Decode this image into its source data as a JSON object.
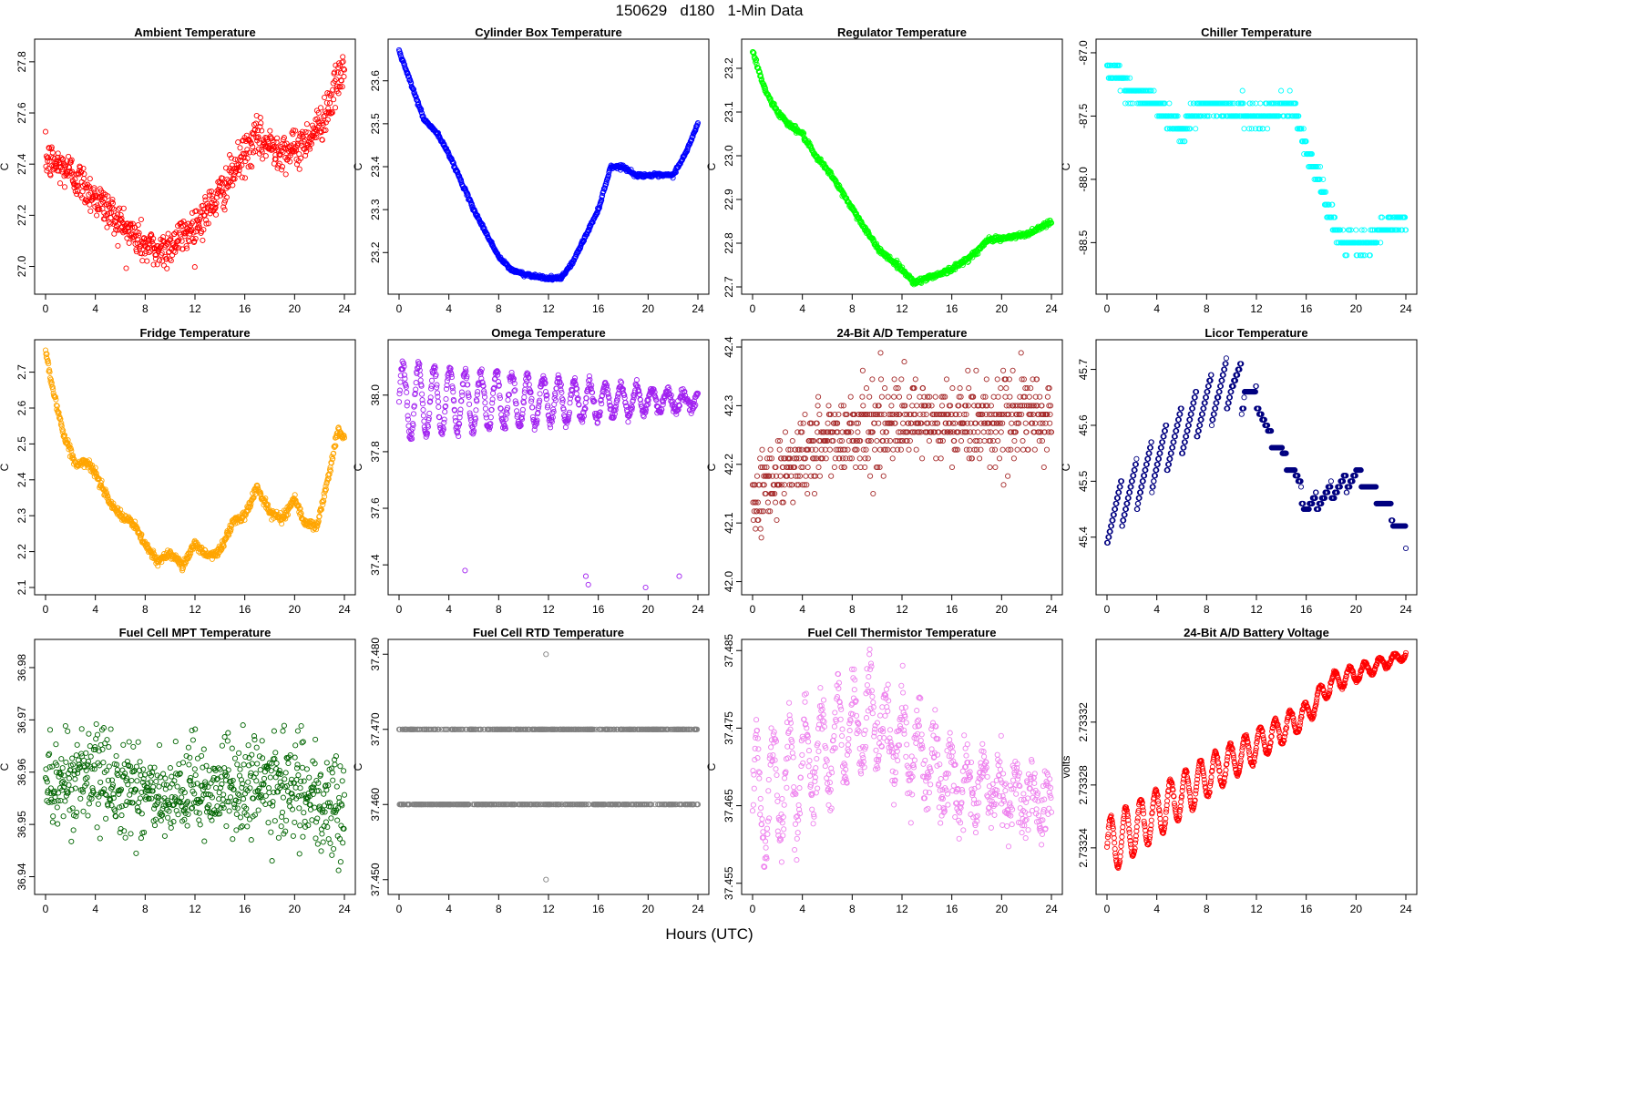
{
  "overall_title": "150629   d180   1-Min Data",
  "overall_xlabel": "Hours (UTC)",
  "chart_data": [
    {
      "type": "scatter",
      "title": "Ambient Temperature",
      "ylabel": "C",
      "color": "#ff0000",
      "xlim": [
        0,
        24
      ],
      "ylim": [
        26.92,
        27.86
      ],
      "xticks": [
        "0",
        "4",
        "8",
        "12",
        "16",
        "20",
        "24"
      ],
      "yticks": [
        "27.0",
        "27.2",
        "27.4",
        "27.6",
        "27.8"
      ],
      "style": "noisy",
      "trend": [
        [
          0,
          27.42
        ],
        [
          2,
          27.37
        ],
        [
          4,
          27.27
        ],
        [
          6,
          27.17
        ],
        [
          8,
          27.08
        ],
        [
          9,
          27.06
        ],
        [
          10,
          27.08
        ],
        [
          12,
          27.16
        ],
        [
          14,
          27.28
        ],
        [
          16,
          27.44
        ],
        [
          17,
          27.5
        ],
        [
          18,
          27.47
        ],
        [
          20,
          27.45
        ],
        [
          22,
          27.55
        ],
        [
          23,
          27.66
        ],
        [
          24,
          27.78
        ]
      ],
      "noise": 0.07
    },
    {
      "type": "scatter",
      "title": "Cylinder Box Temperature",
      "ylabel": "C",
      "color": "#0000ff",
      "xlim": [
        0,
        24
      ],
      "ylim": [
        23.12,
        23.68
      ],
      "xticks": [
        "0",
        "4",
        "8",
        "12",
        "16",
        "20",
        "24"
      ],
      "yticks": [
        "23.2",
        "23.3",
        "23.4",
        "23.5",
        "23.6"
      ],
      "style": "smooth",
      "trend": [
        [
          0,
          23.67
        ],
        [
          1,
          23.59
        ],
        [
          2,
          23.51
        ],
        [
          3,
          23.48
        ],
        [
          4,
          23.43
        ],
        [
          6,
          23.3
        ],
        [
          8,
          23.19
        ],
        [
          9,
          23.16
        ],
        [
          10,
          23.15
        ],
        [
          12,
          23.14
        ],
        [
          13,
          23.14
        ],
        [
          14,
          23.18
        ],
        [
          16,
          23.3
        ],
        [
          17,
          23.4
        ],
        [
          18,
          23.4
        ],
        [
          19,
          23.38
        ],
        [
          22,
          23.38
        ],
        [
          23,
          23.43
        ],
        [
          24,
          23.5
        ]
      ],
      "noise": 0.002
    },
    {
      "type": "scatter",
      "title": "Regulator Temperature",
      "ylabel": "C",
      "color": "#00ff00",
      "xlim": [
        0,
        24
      ],
      "ylim": [
        22.7,
        23.25
      ],
      "xticks": [
        "0",
        "4",
        "8",
        "12",
        "16",
        "20",
        "24"
      ],
      "yticks": [
        "22.7",
        "22.8",
        "22.9",
        "23.0",
        "23.1",
        "23.2"
      ],
      "style": "smooth",
      "trend": [
        [
          0,
          23.24
        ],
        [
          1,
          23.15
        ],
        [
          2,
          23.1
        ],
        [
          3,
          23.07
        ],
        [
          4,
          23.05
        ],
        [
          5,
          23.0
        ],
        [
          6,
          22.97
        ],
        [
          8,
          22.88
        ],
        [
          10,
          22.79
        ],
        [
          12,
          22.74
        ],
        [
          13,
          22.71
        ],
        [
          14,
          22.72
        ],
        [
          16,
          22.74
        ],
        [
          18,
          22.78
        ],
        [
          19,
          22.81
        ],
        [
          20,
          22.81
        ],
        [
          22,
          22.82
        ],
        [
          24,
          22.85
        ]
      ],
      "noise": 0.003
    },
    {
      "type": "scatter",
      "title": "Chiller Temperature",
      "ylabel": "C",
      "color": "#00ffff",
      "xlim": [
        0,
        24
      ],
      "ylim": [
        -88.85,
        -86.95
      ],
      "xticks": [
        "0",
        "4",
        "8",
        "12",
        "16",
        "20",
        "24"
      ],
      "yticks": [
        "-87.0",
        "-87.5",
        "-88.0",
        "-88.5"
      ],
      "style": "quantized",
      "quantum": 0.1,
      "trend": [
        [
          0,
          -87.1
        ],
        [
          2,
          -87.3
        ],
        [
          4,
          -87.4
        ],
        [
          6,
          -87.6
        ],
        [
          7,
          -87.5
        ],
        [
          8,
          -87.4
        ],
        [
          12,
          -87.5
        ],
        [
          15,
          -87.4
        ],
        [
          16,
          -87.8
        ],
        [
          17,
          -88.0
        ],
        [
          18,
          -88.3
        ],
        [
          19,
          -88.5
        ],
        [
          21,
          -88.5
        ],
        [
          22,
          -88.4
        ],
        [
          24,
          -88.3
        ]
      ],
      "noise": 0.06
    },
    {
      "type": "scatter",
      "title": "Fridge Temperature",
      "ylabel": "C",
      "color": "#ffa500",
      "xlim": [
        0,
        24
      ],
      "ylim": [
        2.1,
        2.77
      ],
      "xticks": [
        "0",
        "4",
        "8",
        "12",
        "16",
        "20",
        "24"
      ],
      "yticks": [
        "2.1",
        "2.2",
        "2.3",
        "2.4",
        "2.5",
        "2.6",
        "2.7"
      ],
      "style": "smooth",
      "trend": [
        [
          0,
          2.76
        ],
        [
          0.6,
          2.65
        ],
        [
          1.5,
          2.52
        ],
        [
          2.5,
          2.44
        ],
        [
          3.2,
          2.45
        ],
        [
          4,
          2.42
        ],
        [
          5,
          2.35
        ],
        [
          6,
          2.3
        ],
        [
          7,
          2.28
        ],
        [
          8,
          2.22
        ],
        [
          9,
          2.17
        ],
        [
          10,
          2.2
        ],
        [
          11,
          2.16
        ],
        [
          12,
          2.22
        ],
        [
          13,
          2.19
        ],
        [
          14,
          2.2
        ],
        [
          15,
          2.28
        ],
        [
          16,
          2.3
        ],
        [
          17,
          2.38
        ],
        [
          18,
          2.31
        ],
        [
          19,
          2.29
        ],
        [
          20,
          2.35
        ],
        [
          20.8,
          2.28
        ],
        [
          21.8,
          2.27
        ],
        [
          22.8,
          2.42
        ],
        [
          23.5,
          2.54
        ],
        [
          24,
          2.52
        ]
      ],
      "noise": 0.006
    },
    {
      "type": "scatter",
      "title": "Omega Temperature",
      "ylabel": "C",
      "color": "#a020f0",
      "xlim": [
        0,
        24
      ],
      "ylim": [
        37.32,
        38.17
      ],
      "xticks": [
        "0",
        "4",
        "8",
        "12",
        "16",
        "20",
        "24"
      ],
      "yticks": [
        "37.4",
        "37.6",
        "37.8",
        "38.0"
      ],
      "style": "oscillating",
      "base": 37.98,
      "amp0": 0.13,
      "amp1": 0.025,
      "period": 1.25,
      "noise": 0.01,
      "outliers": [
        [
          5.3,
          37.38
        ],
        [
          15.0,
          37.36
        ],
        [
          15.2,
          37.33
        ],
        [
          19.8,
          37.32
        ],
        [
          22.5,
          37.36
        ]
      ]
    },
    {
      "type": "scatter",
      "title": "24-Bit A/D Temperature",
      "ylabel": "C",
      "color": "#a52a2a",
      "xlim": [
        0,
        24
      ],
      "ylim": [
        41.99,
        42.4
      ],
      "xticks": [
        "0",
        "4",
        "8",
        "12",
        "16",
        "20",
        "24"
      ],
      "yticks": [
        "42.0",
        "42.1",
        "42.2",
        "42.3",
        "42.4"
      ],
      "style": "quantized",
      "quantum": 0.015,
      "trend": [
        [
          0,
          42.15
        ],
        [
          3,
          42.2
        ],
        [
          6,
          42.24
        ],
        [
          8,
          42.26
        ],
        [
          12,
          42.27
        ],
        [
          16,
          42.27
        ],
        [
          20,
          42.28
        ],
        [
          24,
          42.28
        ]
      ],
      "noise": 0.05
    },
    {
      "type": "scatter",
      "title": "Licor Temperature",
      "ylabel": "C",
      "color": "#000080",
      "xlim": [
        0,
        24
      ],
      "ylim": [
        45.31,
        45.74
      ],
      "xticks": [
        "0",
        "4",
        "8",
        "12",
        "16",
        "20",
        "24"
      ],
      "yticks": [
        "45.4",
        "45.5",
        "45.6",
        "45.7"
      ],
      "style": "sawtooth",
      "quantum": 0.01,
      "trend": [
        [
          0,
          45.43
        ],
        [
          4,
          45.54
        ],
        [
          8,
          45.64
        ],
        [
          10,
          45.68
        ],
        [
          12,
          45.65
        ],
        [
          13,
          45.58
        ],
        [
          15,
          45.52
        ],
        [
          16,
          45.45
        ],
        [
          18,
          45.48
        ],
        [
          20,
          45.51
        ],
        [
          22,
          45.47
        ],
        [
          24,
          45.4
        ]
      ],
      "amp": 0.09,
      "period": 1.2,
      "amp_end": 11
    },
    {
      "type": "scatter",
      "title": "Fuel Cell MPT Temperature",
      "ylabel": "C",
      "color": "#006400",
      "xlim": [
        0,
        24
      ],
      "ylim": [
        36.938,
        36.984
      ],
      "xticks": [
        "0",
        "4",
        "8",
        "12",
        "16",
        "20",
        "24"
      ],
      "yticks": [
        "36.94",
        "36.95",
        "36.96",
        "36.97",
        "36.98"
      ],
      "style": "noisy",
      "trend": [
        [
          0,
          36.958
        ],
        [
          4,
          36.959
        ],
        [
          8,
          36.957
        ],
        [
          10,
          36.953
        ],
        [
          12,
          36.957
        ],
        [
          16,
          36.957
        ],
        [
          20,
          36.958
        ],
        [
          22,
          36.952
        ],
        [
          24,
          36.955
        ]
      ],
      "noise": 0.0085
    },
    {
      "type": "scatter",
      "title": "Fuel Cell RTD Temperature",
      "ylabel": "C",
      "color": "#808080",
      "xlim": [
        0,
        24
      ],
      "ylim": [
        37.449,
        37.481
      ],
      "xticks": [
        "0",
        "4",
        "8",
        "12",
        "16",
        "20",
        "24"
      ],
      "yticks": [
        "37.450",
        "37.460",
        "37.470",
        "37.480"
      ],
      "style": "levels",
      "levels": [
        37.46,
        37.47
      ],
      "outliers": [
        [
          11.8,
          37.48
        ],
        [
          11.8,
          37.45
        ]
      ]
    },
    {
      "type": "scatter",
      "title": "Fuel Cell Thermistor Temperature",
      "ylabel": "C",
      "color": "#ee82ee",
      "xlim": [
        0,
        24
      ],
      "ylim": [
        37.4545,
        37.4855
      ],
      "xticks": [
        "0",
        "4",
        "8",
        "12",
        "16",
        "20",
        "24"
      ],
      "yticks": [
        "37.455",
        "37.465",
        "37.475",
        "37.485"
      ],
      "style": "oscillating",
      "trendpts": [
        [
          0,
          37.465
        ],
        [
          4,
          37.47
        ],
        [
          8,
          37.475
        ],
        [
          10,
          37.476
        ],
        [
          12,
          37.473
        ],
        [
          14,
          37.471
        ],
        [
          16,
          37.468
        ],
        [
          20,
          37.467
        ],
        [
          24,
          37.465
        ]
      ],
      "amp0": 0.0075,
      "amp1": 0.002,
      "period": 1.3,
      "noise": 0.0018
    },
    {
      "type": "scatter",
      "title": "24-Bit A/D Battery Voltage",
      "ylabel": "volts",
      "color": "#ff0000",
      "xlim": [
        0,
        24
      ],
      "ylim": [
        2.733215,
        2.733368
      ],
      "xticks": [
        "0",
        "4",
        "8",
        "12",
        "16",
        "20",
        "24"
      ],
      "yticks": [
        "2.73324",
        "2.73328",
        "2.73332"
      ],
      "style": "oscillating",
      "trendpts": [
        [
          0,
          2.73324
        ],
        [
          4,
          2.733262
        ],
        [
          8,
          2.733285
        ],
        [
          12,
          2.733305
        ],
        [
          16,
          2.733325
        ],
        [
          18,
          2.733345
        ],
        [
          20,
          2.733351
        ],
        [
          24,
          2.733363
        ]
      ],
      "amp0": 1.8e-05,
      "amp1": 2.5e-06,
      "period": 1.2,
      "noise": 6e-07
    }
  ]
}
